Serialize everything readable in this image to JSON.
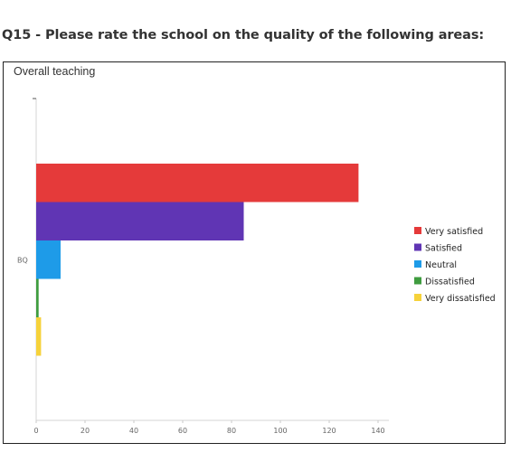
{
  "page": {
    "heading": "Q15 - Please rate the school on the quality of the following areas:"
  },
  "chart_data": {
    "type": "bar",
    "orientation": "horizontal",
    "title": "Overall teaching",
    "categories": [
      "BQ"
    ],
    "series": [
      {
        "name": "Very satisfied",
        "values": [
          132
        ],
        "color": "#e53a3a"
      },
      {
        "name": "Satisfied",
        "values": [
          85
        ],
        "color": "#6035b4"
      },
      {
        "name": "Neutral",
        "values": [
          10
        ],
        "color": "#1e9be8"
      },
      {
        "name": "Dissatisfied",
        "values": [
          1
        ],
        "color": "#3f9c3f"
      },
      {
        "name": "Very dissatisfied",
        "values": [
          2
        ],
        "color": "#f6d23a"
      }
    ],
    "xlim": [
      0,
      140
    ],
    "xticks": [
      0,
      20,
      40,
      60,
      80,
      100,
      120,
      140
    ],
    "xlabel": "",
    "ylabel": "",
    "grid": false,
    "legend": "right"
  }
}
